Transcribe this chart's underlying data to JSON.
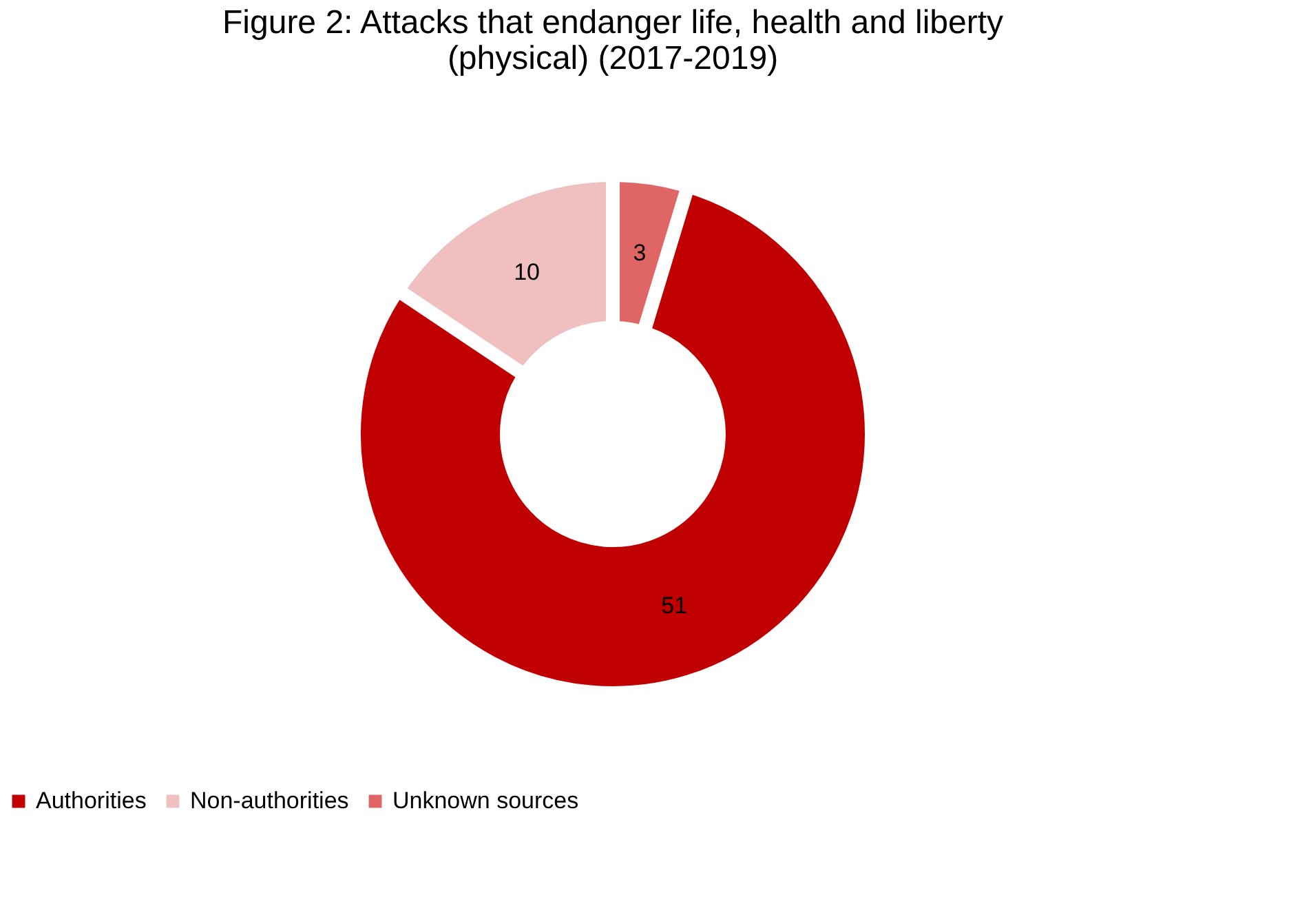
{
  "chart_data": {
    "type": "donut",
    "title": [
      "Figure 2: Attacks that endanger life, health and liberty",
      "(physical) (2017-2019)"
    ],
    "categories": [
      "Authorities",
      "Non-authorities",
      "Unknown sources"
    ],
    "values": [
      51,
      10,
      3
    ],
    "colors": [
      "#c00000",
      "#f0c0c0",
      "#e06666"
    ],
    "data_labels": true,
    "legend": "bottom"
  }
}
